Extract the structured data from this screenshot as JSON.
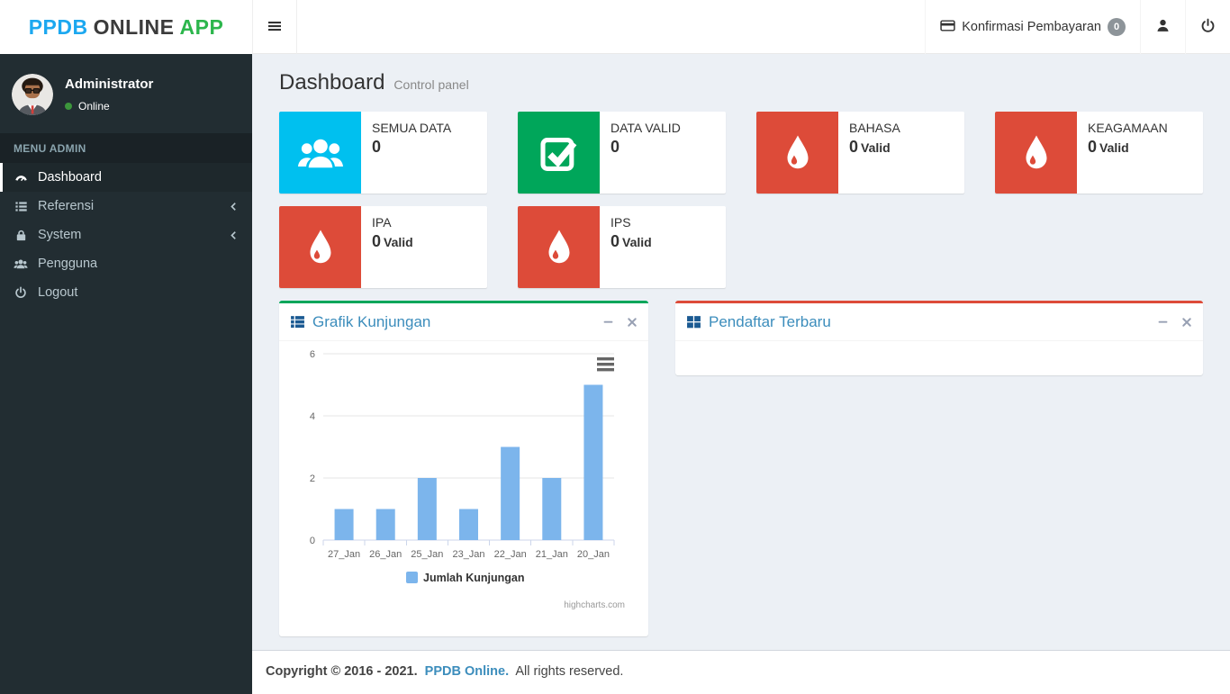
{
  "header": {
    "logo": {
      "part1": "PPDB",
      "part2": "ONLINE",
      "part3": "APP"
    },
    "brand_colors": {
      "part1": "#1ca8f0",
      "part2": "#3b3b3b",
      "part3": "#2cb64c"
    },
    "konfirmasi": {
      "label": "Konfirmasi Pembayaran",
      "badge": "0"
    }
  },
  "sidebar": {
    "user": {
      "name": "Administrator",
      "status": "Online",
      "status_color": "#3c963c"
    },
    "section_header": "MENU ADMIN",
    "items": [
      {
        "label": "Dashboard",
        "icon": "dashboard-icon",
        "active": true,
        "has_submenu": false
      },
      {
        "label": "Referensi",
        "icon": "list-icon",
        "active": false,
        "has_submenu": true
      },
      {
        "label": "System",
        "icon": "lock-icon",
        "active": false,
        "has_submenu": true
      },
      {
        "label": "Pengguna",
        "icon": "users-icon",
        "active": false,
        "has_submenu": false
      },
      {
        "label": "Logout",
        "icon": "power-icon",
        "active": false,
        "has_submenu": false
      }
    ]
  },
  "content": {
    "title": "Dashboard",
    "subtitle": "Control panel",
    "info_boxes": [
      {
        "label": "SEMUA DATA",
        "number": "0",
        "suffix": "",
        "color": "#00c0ef",
        "icon": "users-icon"
      },
      {
        "label": "DATA VALID",
        "number": "0",
        "suffix": "",
        "color": "#00a65a",
        "icon": "check-square-icon"
      },
      {
        "label": "BAHASA",
        "number": "0",
        "suffix": "Valid",
        "color": "#dd4b39",
        "icon": "tint-icon"
      },
      {
        "label": "KEAGAMAAN",
        "number": "0",
        "suffix": "Valid",
        "color": "#dd4b39",
        "icon": "tint-icon"
      },
      {
        "label": "IPA",
        "number": "0",
        "suffix": "Valid",
        "color": "#dd4b39",
        "icon": "tint-icon"
      },
      {
        "label": "IPS",
        "number": "0",
        "suffix": "Valid",
        "color": "#dd4b39",
        "icon": "tint-icon"
      }
    ],
    "panels": {
      "chart": {
        "title": "Grafik Kunjungan",
        "icon": "th-list-icon",
        "accent": "#00a65a"
      },
      "list": {
        "title": "Pendaftar Terbaru",
        "icon": "th-large-icon",
        "accent": "#dd4b39"
      }
    }
  },
  "chart_data": {
    "type": "bar",
    "title": "",
    "categories": [
      "27_Jan",
      "26_Jan",
      "25_Jan",
      "23_Jan",
      "22_Jan",
      "21_Jan",
      "20_Jan"
    ],
    "series": [
      {
        "name": "Jumlah Kunjungan",
        "values": [
          1,
          1,
          2,
          1,
          3,
          2,
          5
        ]
      }
    ],
    "xlabel": "",
    "ylabel": "",
    "ylim": [
      0,
      6
    ],
    "yticks": [
      0,
      2,
      4,
      6
    ],
    "grid": true,
    "legend_position": "bottom",
    "bar_color": "#7cb5ec",
    "credit": "highcharts.com"
  },
  "footer": {
    "copyright": "Copyright © 2016 - 2021.",
    "brand": "PPDB Online.",
    "rights": "All rights reserved."
  }
}
